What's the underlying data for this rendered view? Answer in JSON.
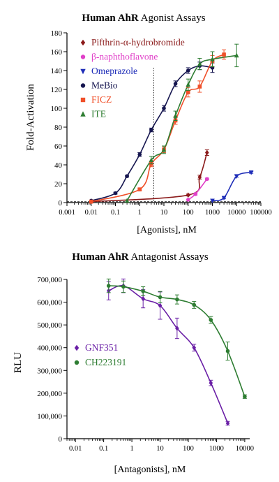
{
  "chart_data": [
    {
      "type": "line",
      "title_bold": "Human AhR",
      "title_rest": " Agonist Assays",
      "xlabel": "[Agonists], nM",
      "ylabel": "Fold-Activation",
      "xscale": "log",
      "xlim": [
        0.001,
        100000
      ],
      "ylim": [
        0,
        180
      ],
      "xticks": [
        "0.001",
        "0.01",
        "0.1",
        "1",
        "10",
        "100",
        "1000",
        "10000",
        "100000"
      ],
      "yticks": [
        "0",
        "20",
        "40",
        "60",
        "80",
        "100",
        "120",
        "140",
        "160",
        "180"
      ],
      "reference_vline_x": 3.8,
      "baseline_dashed_y": 1,
      "legend_position": "top-left",
      "series": [
        {
          "name": "Pifthrin-α-hydrobromide",
          "color": "#8B1A1A",
          "marker": "diamond",
          "x": [
            0.01,
            100,
            300,
            600
          ],
          "y": [
            1,
            8,
            27,
            53
          ],
          "err": [
            0,
            1,
            2,
            3
          ]
        },
        {
          "name": "β-naphthoflavone",
          "color": "#E040C8",
          "marker": "circle",
          "x": [
            100,
            200,
            600
          ],
          "y": [
            3,
            9,
            25
          ],
          "err": [
            0,
            1,
            1
          ]
        },
        {
          "name": "Omeprazole",
          "color": "#1E2DB8",
          "marker": "triangle-down",
          "x": [
            1000,
            3000,
            10000,
            40000
          ],
          "y": [
            2,
            5,
            28,
            32
          ],
          "err": [
            0,
            1,
            1,
            1
          ]
        },
        {
          "name": "MeBio",
          "color": "#161650",
          "marker": "circle",
          "x": [
            0.01,
            0.1,
            0.3,
            1,
            3,
            10,
            30,
            100,
            300,
            1000
          ],
          "y": [
            2,
            10,
            28,
            51,
            77,
            100,
            126,
            140,
            145,
            143
          ],
          "err": [
            0,
            1,
            1,
            2,
            2,
            3,
            3,
            3,
            4,
            5
          ]
        },
        {
          "name": "FICZ",
          "color": "#F0502A",
          "marker": "square",
          "x": [
            0.01,
            1,
            3,
            10,
            30,
            100,
            300,
            1000,
            3000
          ],
          "y": [
            1,
            14,
            41,
            56,
            87,
            117,
            123,
            150,
            157
          ],
          "err": [
            0,
            1,
            3,
            3,
            4,
            5,
            6,
            6,
            5
          ]
        },
        {
          "name": "ITE",
          "color": "#2E7D32",
          "marker": "triangle-up",
          "x": [
            0.3,
            3,
            10,
            30,
            100,
            300,
            1000,
            10000
          ],
          "y": [
            2,
            45,
            56,
            92,
            125,
            147,
            152,
            156
          ],
          "err": [
            0,
            4,
            4,
            5,
            6,
            6,
            8,
            12
          ]
        }
      ]
    },
    {
      "type": "line",
      "title_bold": "Human AhR",
      "title_rest": " Antagonist Assays",
      "xlabel": "[Antagonists], nM",
      "ylabel": "RLU",
      "xscale": "log",
      "xlim": [
        0.005,
        15000
      ],
      "ylim": [
        0,
        700000
      ],
      "xticks": [
        "0.01",
        "0.1",
        "1",
        "10",
        "100",
        "1000",
        "10000"
      ],
      "yticks": [
        "0",
        "100,000",
        "200,000",
        "300,000",
        "400,000",
        "500,000",
        "600,000",
        "700,000"
      ],
      "legend_position": "bottom-left",
      "series": [
        {
          "name": "GNF351",
          "color": "#6A1FA6",
          "marker": "diamond",
          "x": [
            0.15,
            0.5,
            2.5,
            10,
            40,
            160,
            630,
            2500
          ],
          "y": [
            650000,
            672000,
            615000,
            585000,
            485000,
            400000,
            245000,
            68000
          ],
          "err": [
            40000,
            30000,
            40000,
            60000,
            45000,
            15000,
            12000,
            8000
          ]
        },
        {
          "name": "CH223191",
          "color": "#2E7D32",
          "marker": "circle",
          "x": [
            0.15,
            0.5,
            2.5,
            10,
            40,
            160,
            630,
            2500,
            10000
          ],
          "y": [
            672000,
            668000,
            648000,
            622000,
            612000,
            588000,
            522000,
            385000,
            185000
          ],
          "err": [
            30000,
            25000,
            20000,
            25000,
            20000,
            15000,
            15000,
            40000,
            8000
          ]
        }
      ]
    }
  ]
}
